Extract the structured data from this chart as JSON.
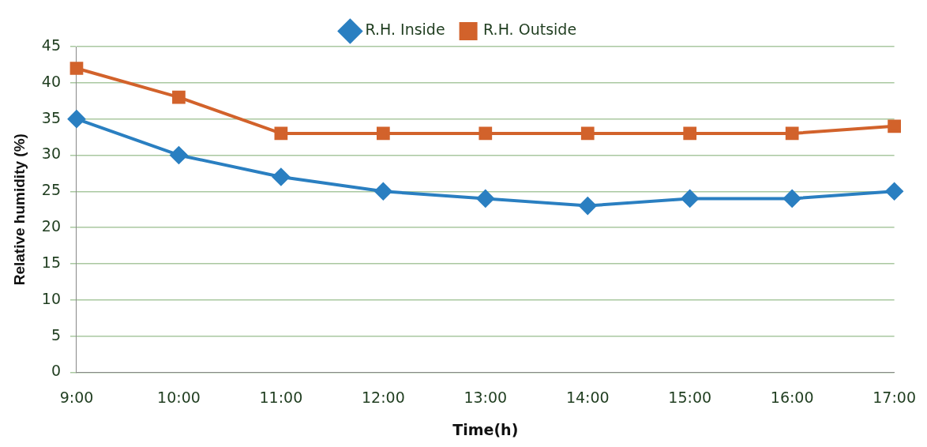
{
  "chart_data": {
    "type": "line",
    "xlabel": "Time(h)",
    "ylabel": "Relative humidity (%)",
    "categories": [
      "9:00",
      "10:00",
      "11:00",
      "12:00",
      "13:00",
      "14:00",
      "15:00",
      "16:00",
      "17:00"
    ],
    "series": [
      {
        "name": "R.H. Inside",
        "color": "#2a7fc1",
        "marker": "diamond",
        "values": [
          35,
          30,
          27,
          25,
          24,
          23,
          24,
          24,
          25
        ]
      },
      {
        "name": "R.H. Outside",
        "color": "#d2622b",
        "marker": "square",
        "values": [
          42,
          38,
          33,
          33,
          33,
          33,
          33,
          33,
          34
        ]
      }
    ],
    "ylim": [
      0,
      45
    ],
    "yticks": [
      0,
      5,
      10,
      15,
      20,
      25,
      30,
      35,
      40,
      45
    ],
    "grid": "y",
    "legend": "top"
  }
}
